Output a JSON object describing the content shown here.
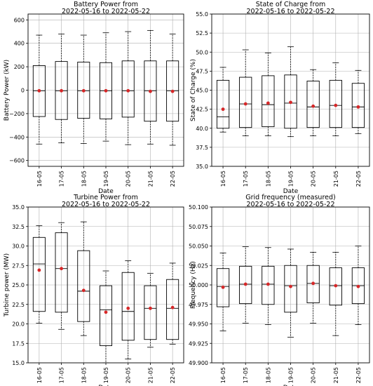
{
  "chart_data": [
    {
      "type": "box",
      "title": "Battery Power from\n2022-05-16 to 2022-05-22",
      "xlabel": "Date",
      "ylabel": "Battery Power (kW)",
      "ylim": [
        -650,
        650
      ],
      "yticks": [
        "−600",
        "−400",
        "−200",
        "0",
        "200",
        "400",
        "600"
      ],
      "ytick_values": [
        -600,
        -400,
        -200,
        0,
        200,
        400,
        600
      ],
      "grid": true,
      "categories": [
        "16-05",
        "17-05",
        "18-05",
        "19-05",
        "20-05",
        "21-05",
        "22-05"
      ],
      "boxes": [
        {
          "whislo": -460,
          "q1": -225,
          "med": -5,
          "q3": 210,
          "whishi": 470,
          "mean": -5
        },
        {
          "whislo": -450,
          "q1": -250,
          "med": -5,
          "q3": 245,
          "whishi": 480,
          "mean": -5
        },
        {
          "whislo": -455,
          "q1": -240,
          "med": -5,
          "q3": 240,
          "whishi": 470,
          "mean": -5
        },
        {
          "whislo": -435,
          "q1": -245,
          "med": -5,
          "q3": 235,
          "whishi": 490,
          "mean": -5
        },
        {
          "whislo": -465,
          "q1": -230,
          "med": -5,
          "q3": 250,
          "whishi": 500,
          "mean": -5
        },
        {
          "whislo": -460,
          "q1": -265,
          "med": -5,
          "q3": 250,
          "whishi": 510,
          "mean": -10
        },
        {
          "whislo": -470,
          "q1": -265,
          "med": -5,
          "q3": 250,
          "whishi": 480,
          "mean": -10
        }
      ]
    },
    {
      "type": "box",
      "title": "State of Charge from\n2022-05-16 to 2022-05-22",
      "xlabel": "Date",
      "ylabel": "State of Charge (%)",
      "ylim": [
        35.0,
        55.0
      ],
      "yticks": [
        "35.0",
        "37.5",
        "40.0",
        "42.5",
        "45.0",
        "47.5",
        "50.0",
        "52.5",
        "55.0"
      ],
      "ytick_values": [
        35.0,
        37.5,
        40.0,
        42.5,
        45.0,
        47.5,
        50.0,
        52.5,
        55.0
      ],
      "grid": true,
      "categories": [
        "16-05",
        "17-05",
        "18-05",
        "19-05",
        "20-05",
        "21-05",
        "22-05"
      ],
      "boxes": [
        {
          "whislo": 39.5,
          "q1": 40.0,
          "med": 41.5,
          "q3": 46.3,
          "whishi": 48.0,
          "mean": 42.5
        },
        {
          "whislo": 39.0,
          "q1": 40.1,
          "med": 43.2,
          "q3": 46.7,
          "whishi": 50.3,
          "mean": 43.2
        },
        {
          "whislo": 39.0,
          "q1": 40.2,
          "med": 43.1,
          "q3": 46.9,
          "whishi": 49.9,
          "mean": 43.3
        },
        {
          "whislo": 38.9,
          "q1": 40.0,
          "med": 43.3,
          "q3": 47.0,
          "whishi": 50.7,
          "mean": 43.4
        },
        {
          "whislo": 39.0,
          "q1": 40.1,
          "med": 42.8,
          "q3": 46.2,
          "whishi": 47.7,
          "mean": 42.9
        },
        {
          "whislo": 39.0,
          "q1": 40.1,
          "med": 43.0,
          "q3": 46.3,
          "whishi": 48.6,
          "mean": 43.0
        },
        {
          "whislo": 39.3,
          "q1": 40.1,
          "med": 42.8,
          "q3": 45.9,
          "whishi": 47.6,
          "mean": 42.8
        }
      ]
    },
    {
      "type": "box",
      "title": "Turbine Power from\n2022-05-16 to 2022-05-22",
      "xlabel": "Date",
      "ylabel": "Turbine power (MW)",
      "ylim": [
        15.0,
        35.0
      ],
      "yticks": [
        "15.0",
        "17.5",
        "20.0",
        "22.5",
        "25.0",
        "27.5",
        "30.0",
        "32.5",
        "35.0"
      ],
      "ytick_values": [
        15.0,
        17.5,
        20.0,
        22.5,
        25.0,
        27.5,
        30.0,
        32.5,
        35.0
      ],
      "grid": true,
      "categories": [
        "16-05",
        "17-05",
        "18-05",
        "19-05",
        "20-05",
        "21-05",
        "22-05"
      ],
      "boxes": [
        {
          "whislo": 20.1,
          "q1": 21.6,
          "med": 27.7,
          "q3": 31.1,
          "whishi": 32.6,
          "mean": 26.9
        },
        {
          "whislo": 19.3,
          "q1": 21.5,
          "med": 27.1,
          "q3": 31.7,
          "whishi": 33.0,
          "mean": 27.1
        },
        {
          "whislo": 18.5,
          "q1": 20.3,
          "med": 24.2,
          "q3": 29.4,
          "whishi": 33.1,
          "mean": 24.3
        },
        {
          "whislo": 15.0,
          "q1": 17.2,
          "med": 21.8,
          "q3": 24.9,
          "whishi": 26.8,
          "mean": 21.5
        },
        {
          "whislo": 15.5,
          "q1": 17.9,
          "med": 21.6,
          "q3": 26.6,
          "whishi": 28.1,
          "mean": 22.0
        },
        {
          "whislo": 17.0,
          "q1": 18.0,
          "med": 22.0,
          "q3": 24.9,
          "whishi": 26.5,
          "mean": 22.0
        },
        {
          "whislo": 17.4,
          "q1": 18.0,
          "med": 22.0,
          "q3": 25.7,
          "whishi": 27.8,
          "mean": 22.1
        }
      ]
    },
    {
      "type": "box",
      "title": "Grid frequency (measured)\n2022-05-16 to 2022-05-22",
      "xlabel": "Date",
      "ylabel": "Frequency (Hz)",
      "ylim": [
        49.9,
        50.1
      ],
      "yticks": [
        "49.900",
        "49.925",
        "49.950",
        "49.975",
        "50.000",
        "50.025",
        "50.050",
        "50.075",
        "50.100"
      ],
      "ytick_values": [
        49.9,
        49.925,
        49.95,
        49.975,
        50.0,
        50.025,
        50.05,
        50.075,
        50.1
      ],
      "grid": true,
      "categories": [
        "16-05",
        "17-05",
        "18-05",
        "19-05",
        "20-05",
        "21-05",
        "22-05"
      ],
      "boxes": [
        {
          "whislo": 49.941,
          "q1": 49.972,
          "med": 49.998,
          "q3": 50.021,
          "whishi": 50.041,
          "mean": 49.997
        },
        {
          "whislo": 49.951,
          "q1": 49.976,
          "med": 50.001,
          "q3": 50.024,
          "whishi": 50.049,
          "mean": 50.001
        },
        {
          "whislo": 49.949,
          "q1": 49.975,
          "med": 50.001,
          "q3": 50.024,
          "whishi": 50.048,
          "mean": 50.001
        },
        {
          "whislo": 49.933,
          "q1": 49.965,
          "med": 49.999,
          "q3": 50.025,
          "whishi": 50.046,
          "mean": 49.998
        },
        {
          "whislo": 49.951,
          "q1": 49.977,
          "med": 50.002,
          "q3": 50.025,
          "whishi": 50.042,
          "mean": 50.002
        },
        {
          "whislo": 49.935,
          "q1": 49.974,
          "med": 49.999,
          "q3": 50.022,
          "whishi": 50.042,
          "mean": 49.999
        },
        {
          "whislo": 49.949,
          "q1": 49.976,
          "med": 49.999,
          "q3": 50.022,
          "whishi": 50.05,
          "mean": 49.998
        }
      ]
    }
  ],
  "colors": {
    "mean_marker": "#d62728",
    "box_line": "#000000",
    "grid": "#b0b0b0",
    "median_line": "#000000"
  }
}
